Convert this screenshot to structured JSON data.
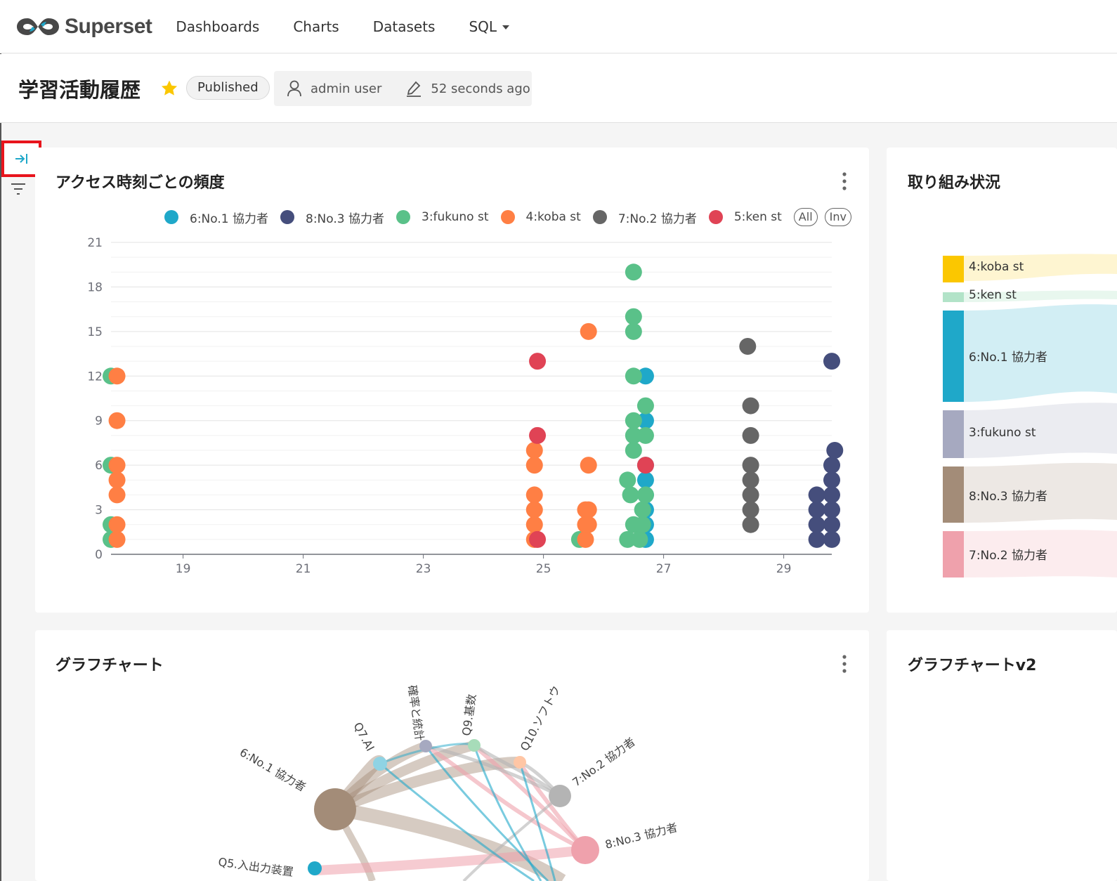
{
  "brand": {
    "name": "Superset"
  },
  "nav": {
    "items": [
      {
        "label": "Dashboards"
      },
      {
        "label": "Charts"
      },
      {
        "label": "Datasets"
      },
      {
        "label": "SQL"
      }
    ]
  },
  "dashboard": {
    "title": "学習活動履歴",
    "status": "Published",
    "owner": "admin user",
    "modified": "52 seconds ago"
  },
  "colors": {
    "blue": "#1fa8c9",
    "navy": "#454e7c",
    "green": "#5ac189",
    "orange": "#ff7f44",
    "gray": "#666666",
    "red": "#e04355",
    "star": "#fbc700",
    "highlight": "#e8141c"
  },
  "charts": {
    "scatter_title": "アクセス時刻ごとの頻度",
    "sankey_title": "取り組み状況",
    "graph_title": "グラフチャート",
    "graph_v2_title": "グラフチャートv2"
  },
  "legend": {
    "all_label": "All",
    "inv_label": "Inv"
  },
  "chart_data": [
    {
      "type": "scatter",
      "title": "アクセス時刻ごとの頻度",
      "xlim": [
        17.8,
        29.8
      ],
      "ylim": [
        0,
        21
      ],
      "x_ticks": [
        "19",
        "21",
        "23",
        "25",
        "27",
        "29"
      ],
      "y_ticks": [
        "0",
        "3",
        "6",
        "9",
        "12",
        "15",
        "18",
        "21"
      ],
      "series": [
        {
          "name": "6:No.1 協力者",
          "color": "#1fa8c9",
          "points": [
            [
              26.7,
              1
            ],
            [
              26.7,
              2
            ],
            [
              26.7,
              3
            ],
            [
              26.7,
              4
            ],
            [
              26.7,
              5
            ],
            [
              26.7,
              6
            ],
            [
              26.7,
              9
            ],
            [
              26.7,
              12
            ]
          ]
        },
        {
          "name": "8:No.3 協力者",
          "color": "#454e7c",
          "points": [
            [
              29.55,
              1
            ],
            [
              29.55,
              2
            ],
            [
              29.55,
              3
            ],
            [
              29.55,
              4
            ],
            [
              29.8,
              1
            ],
            [
              29.8,
              2
            ],
            [
              29.8,
              3
            ],
            [
              29.8,
              4
            ],
            [
              29.8,
              5
            ],
            [
              29.8,
              6
            ],
            [
              29.85,
              7
            ],
            [
              29.8,
              13
            ]
          ]
        },
        {
          "name": "3:fukuno st",
          "color": "#5ac189",
          "points": [
            [
              17.8,
              1
            ],
            [
              17.8,
              2
            ],
            [
              17.8,
              6
            ],
            [
              17.8,
              12
            ],
            [
              25.6,
              1
            ],
            [
              26.4,
              1
            ],
            [
              26.5,
              2
            ],
            [
              26.45,
              4
            ],
            [
              26.4,
              5
            ],
            [
              26.5,
              7
            ],
            [
              26.5,
              8
            ],
            [
              26.5,
              9
            ],
            [
              26.5,
              12
            ],
            [
              26.5,
              15
            ],
            [
              26.5,
              16
            ],
            [
              26.5,
              19
            ],
            [
              26.6,
              1
            ],
            [
              26.65,
              2
            ],
            [
              26.65,
              3
            ],
            [
              26.7,
              4
            ],
            [
              26.7,
              8
            ],
            [
              26.7,
              10
            ]
          ]
        },
        {
          "name": "4:koba st",
          "color": "#ff7f44",
          "points": [
            [
              17.9,
              1
            ],
            [
              17.9,
              2
            ],
            [
              17.9,
              4
            ],
            [
              17.9,
              5
            ],
            [
              17.9,
              6
            ],
            [
              17.9,
              9
            ],
            [
              17.9,
              12
            ],
            [
              24.85,
              1
            ],
            [
              24.85,
              2
            ],
            [
              24.85,
              3
            ],
            [
              24.85,
              4
            ],
            [
              24.85,
              6
            ],
            [
              24.85,
              7
            ],
            [
              25.7,
              1
            ],
            [
              25.7,
              2
            ],
            [
              25.7,
              3
            ],
            [
              25.75,
              2
            ],
            [
              25.75,
              3
            ],
            [
              25.75,
              6
            ],
            [
              25.75,
              15
            ]
          ]
        },
        {
          "name": "7:No.2 協力者",
          "color": "#666666",
          "points": [
            [
              28.45,
              2
            ],
            [
              28.45,
              3
            ],
            [
              28.45,
              4
            ],
            [
              28.45,
              5
            ],
            [
              28.45,
              6
            ],
            [
              28.45,
              8
            ],
            [
              28.45,
              10
            ],
            [
              28.4,
              14
            ]
          ]
        },
        {
          "name": "5:ken st",
          "color": "#e04355",
          "points": [
            [
              24.9,
              1
            ],
            [
              24.9,
              8
            ],
            [
              24.9,
              13
            ],
            [
              26.7,
              6
            ]
          ]
        }
      ]
    },
    {
      "type": "sankey",
      "title": "取り組み状況",
      "nodes": [
        {
          "name": "4:koba st",
          "color": "#fbc700"
        },
        {
          "name": "5:ken st",
          "color": "#b2e3c8"
        },
        {
          "name": "6:No.1 協力者",
          "color": "#1fa8c9"
        },
        {
          "name": "3:fukuno st",
          "color": "#a6a9c0"
        },
        {
          "name": "8:No.3 協力者",
          "color": "#a38c78"
        },
        {
          "name": "7:No.2 協力者",
          "color": "#efa1ac"
        }
      ]
    },
    {
      "type": "graph",
      "title": "グラフチャート",
      "nodes": [
        {
          "name": "6:No.1 協力者",
          "color": "#a38c78"
        },
        {
          "name": "Q7.AI",
          "color": "#8fd3e4"
        },
        {
          "name": "確率と統計",
          "color": "#a6a9c0"
        },
        {
          "name": "Q9.基数",
          "color": "#a7dcb9"
        },
        {
          "name": "Q10.ソフトウ",
          "color": "#ffc6a5"
        },
        {
          "name": "7:No.2 協力者",
          "color": "#b4b4b4"
        },
        {
          "name": "8:No.3 協力者",
          "color": "#efa1ac"
        },
        {
          "name": "Q5.入出力装置",
          "color": "#1fa8c9"
        }
      ]
    }
  ]
}
